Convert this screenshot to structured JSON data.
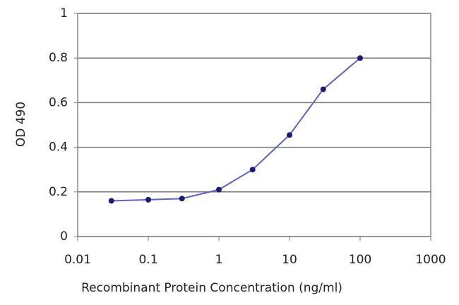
{
  "chart_data": {
    "type": "line",
    "x_label": "Recombinant Protein Concentration (ng/ml)",
    "y_label": "OD 490",
    "x": [
      0.03,
      0.1,
      0.3,
      1,
      3,
      10,
      30,
      100
    ],
    "series": [
      {
        "name": "OD 490",
        "color": "#6060c8",
        "marker_color": "#1c1c78",
        "values": [
          0.16,
          0.165,
          0.17,
          0.21,
          0.3,
          0.455,
          0.66,
          0.8
        ]
      }
    ],
    "xlim": [
      0.01,
      1000
    ],
    "xticks": [
      0.01,
      0.1,
      1,
      10,
      100,
      1000
    ],
    "xlog": true,
    "ylim": [
      0,
      1
    ],
    "yticks": [
      0,
      0.2,
      0.4,
      0.6,
      0.8,
      1
    ],
    "grid": true
  }
}
